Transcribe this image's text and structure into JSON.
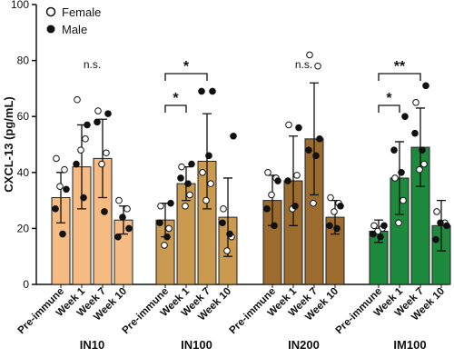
{
  "chart_data": {
    "type": "bar",
    "y_label": "CXCL-13 (pg/mL)",
    "ylim": [
      0,
      100
    ],
    "yticks": [
      0,
      20,
      40,
      60,
      80,
      100
    ],
    "categories": [
      "Pre-immune",
      "Week 1",
      "Week 7",
      "Week 10"
    ],
    "legend": {
      "female": "Female",
      "male": "Male"
    },
    "groups": [
      {
        "name": "IN10",
        "color": "#f6bb83",
        "values": [
          31,
          42,
          45,
          23
        ],
        "errors": [
          9,
          15,
          14,
          5
        ],
        "female": [
          [
            45,
            41,
            35
          ],
          [
            66,
            52,
            48
          ],
          [
            62,
            47,
            43
          ],
          [
            30,
            27
          ]
        ],
        "male": [
          [
            34,
            27,
            18
          ],
          [
            57,
            43,
            31
          ],
          [
            61,
            58,
            26
          ],
          [
            24,
            20,
            17
          ]
        ]
      },
      {
        "name": "IN100",
        "color": "#c99a4f",
        "values": [
          23,
          36,
          44,
          24
        ],
        "errors": [
          6,
          6,
          17,
          14
        ],
        "female": [
          [
            28,
            20,
            14
          ],
          [
            42,
            32,
            28
          ],
          [
            40,
            36,
            30
          ],
          [
            27,
            17,
            12
          ]
        ],
        "male": [
          [
            29,
            22,
            17
          ],
          [
            43,
            38,
            36
          ],
          [
            69,
            69,
            46
          ],
          [
            53,
            22,
            18
          ]
        ]
      },
      {
        "name": "IN200",
        "color": "#9c6b2e",
        "values": [
          30,
          37,
          52,
          24
        ],
        "errors": [
          9,
          16,
          20,
          6
        ],
        "female": [
          [
            40,
            38,
            32
          ],
          [
            57,
            39,
            27
          ],
          [
            82,
            78,
            29
          ],
          [
            31,
            29,
            26
          ]
        ],
        "male": [
          [
            37,
            27,
            21
          ],
          [
            56,
            37,
            28
          ],
          [
            52,
            48,
            46
          ],
          [
            28,
            21,
            20
          ]
        ]
      },
      {
        "name": "IM100",
        "color": "#1e8a3e",
        "values": [
          19,
          38,
          49,
          21
        ],
        "errors": [
          4,
          13,
          14,
          9
        ],
        "female": [
          [
            21,
            20,
            19
          ],
          [
            38,
            30,
            22
          ],
          [
            65,
            43,
            41
          ],
          [
            26,
            22
          ]
        ],
        "male": [
          [
            21,
            18,
            17
          ],
          [
            60,
            48,
            40
          ],
          [
            71,
            54,
            48
          ],
          [
            22,
            21,
            16
          ]
        ]
      }
    ],
    "annotations": [
      {
        "text": "n.s.",
        "group": 0
      },
      {
        "text": "*",
        "group": 1,
        "from": 0,
        "to": 1
      },
      {
        "text": "*",
        "group": 1,
        "from": 0,
        "to": 2
      },
      {
        "text": "n.s.",
        "group": 2
      },
      {
        "text": "*",
        "group": 3,
        "from": 0,
        "to": 1
      },
      {
        "text": "**",
        "group": 3,
        "from": 0,
        "to": 2
      }
    ]
  }
}
